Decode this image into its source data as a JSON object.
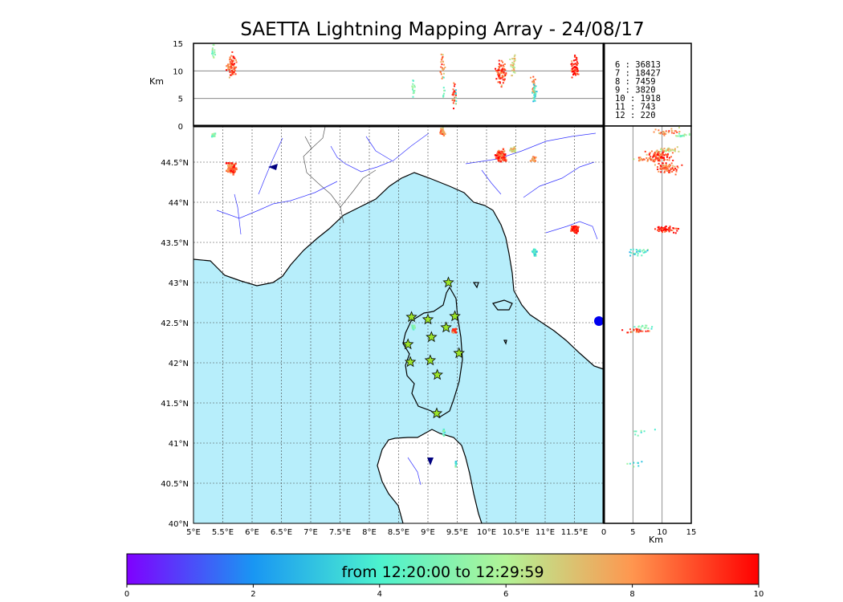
{
  "title": "SAETTA Lightning Mapping Array - 24/08/17",
  "map": {
    "lon_labels": [
      "5°E",
      "5.5°E",
      "6°E",
      "6.5°E",
      "7°E",
      "7.5°E",
      "8°E",
      "8.5°E",
      "9°E",
      "9.5°E",
      "10°E",
      "10.5°E",
      "11°E",
      "11.5°E"
    ],
    "lat_labels": [
      "40°N",
      "40.5°N",
      "41°N",
      "41.5°N",
      "42°N",
      "42.5°N",
      "43°N",
      "43.5°N",
      "44°N",
      "44.5°N"
    ],
    "lon_range": [
      5.0,
      12.0
    ],
    "lat_range": [
      40.0,
      44.95
    ],
    "colors": {
      "sea": "#b7eefb",
      "land": "#ffffff",
      "coast": "#000000",
      "rivers": "#3333ff",
      "grid": "#444444"
    }
  },
  "altitude_panel": {
    "ylabel": "Km",
    "yticks": [
      "0",
      "5",
      "10",
      "15"
    ],
    "yrange": [
      0,
      15
    ]
  },
  "side_panel": {
    "xlabel": "Km",
    "xticks": [
      "0",
      "5",
      "10",
      "15"
    ],
    "xrange": [
      0,
      15
    ]
  },
  "station_counts": [
    {
      "label": "6  :    36813",
      "color": "#000000"
    },
    {
      "label": "7  :    18427",
      "color": "#ff0000"
    },
    {
      "label": "8  :     7459",
      "color": "#000000"
    },
    {
      "label": "9  :     3820",
      "color": "#000000"
    },
    {
      "label": "10 :     1918",
      "color": "#000000"
    },
    {
      "label": "11 :      743",
      "color": "#000000"
    },
    {
      "label": "12 :      220",
      "color": "#000000"
    }
  ],
  "stations": [
    {
      "lon": 9.35,
      "lat": 43.0
    },
    {
      "lon": 8.72,
      "lat": 42.57
    },
    {
      "lon": 9.0,
      "lat": 42.54
    },
    {
      "lon": 9.46,
      "lat": 42.58
    },
    {
      "lon": 9.31,
      "lat": 42.44
    },
    {
      "lon": 9.06,
      "lat": 42.32
    },
    {
      "lon": 8.66,
      "lat": 42.23
    },
    {
      "lon": 9.53,
      "lat": 42.12
    },
    {
      "lon": 8.7,
      "lat": 42.01
    },
    {
      "lon": 9.04,
      "lat": 42.03
    },
    {
      "lon": 9.16,
      "lat": 41.85
    },
    {
      "lon": 9.15,
      "lat": 41.37
    }
  ],
  "station_style": {
    "fill": "#9be52a",
    "stroke": "#000000",
    "symbol": "star"
  },
  "colorbar": {
    "label": "from 12:20:00 to 12:29:59",
    "ticks": [
      "0",
      "2",
      "4",
      "6",
      "8",
      "10"
    ],
    "range": [
      0,
      10
    ],
    "colormap": "rainbow",
    "stops": [
      "#8000ff",
      "#1996f3",
      "#4cf2ce",
      "#b2f396",
      "#ff964f",
      "#ff0000"
    ]
  },
  "clusters": [
    {
      "lon": 5.65,
      "lat": 44.43,
      "w": 0.12,
      "h": 0.09,
      "n": 70,
      "t": 9,
      "alt": 10.8
    },
    {
      "lon": 5.35,
      "lat": 44.83,
      "w": 0.05,
      "h": 0.05,
      "n": 15,
      "t": 5,
      "alt": 13.8
    },
    {
      "lon": 9.25,
      "lat": 44.87,
      "w": 0.05,
      "h": 0.07,
      "n": 25,
      "t": 8,
      "alt": 10.5
    },
    {
      "lon": 10.25,
      "lat": 44.58,
      "w": 0.12,
      "h": 0.1,
      "n": 80,
      "t": 9,
      "alt": 9.5
    },
    {
      "lon": 10.45,
      "lat": 44.65,
      "w": 0.07,
      "h": 0.05,
      "n": 30,
      "t": 7,
      "alt": 11.0
    },
    {
      "lon": 10.8,
      "lat": 44.54,
      "w": 0.06,
      "h": 0.05,
      "n": 25,
      "t": 8,
      "alt": 7.0
    },
    {
      "lon": 11.5,
      "lat": 43.66,
      "w": 0.1,
      "h": 0.05,
      "n": 60,
      "t": 9.5,
      "alt": 10.5
    },
    {
      "lon": 10.82,
      "lat": 43.39,
      "w": 0.05,
      "h": 0.08,
      "n": 25,
      "t": 4,
      "alt": 6.0
    },
    {
      "lon": 9.45,
      "lat": 42.4,
      "w": 0.04,
      "h": 0.05,
      "n": 25,
      "t": 9,
      "alt": 5.5
    },
    {
      "lon": 8.75,
      "lat": 42.44,
      "w": 0.04,
      "h": 0.04,
      "n": 15,
      "t": 5,
      "alt": 7.0
    },
    {
      "lon": 9.28,
      "lat": 41.13,
      "w": 0.03,
      "h": 0.05,
      "n": 8,
      "t": 4.5,
      "alt": 6.5
    },
    {
      "lon": 9.48,
      "lat": 40.73,
      "w": 0.02,
      "h": 0.05,
      "n": 8,
      "t": 4.5,
      "alt": 5.0
    }
  ]
}
